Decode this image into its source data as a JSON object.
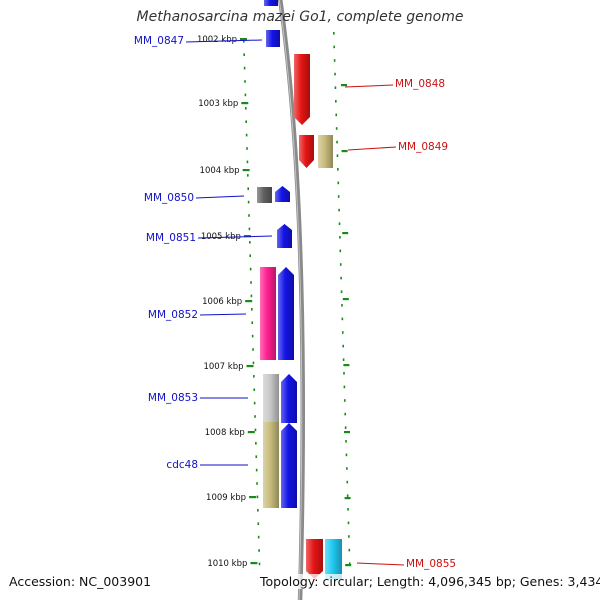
{
  "title": "Methanosarcina mazei Go1, complete genome",
  "footer": {
    "accession": "Accession: NC_003901",
    "info": "Topology: circular; Length: 4,096,345 bp; Genes: 3,434"
  },
  "colors": {
    "backbone": "#8a8a8a",
    "tick": "#1a8a1a",
    "left_label": "#1010c8",
    "right_label": "#cc1010"
  },
  "kbp_labels": [
    "1002 kbp",
    "1003 kbp",
    "1004 kbp",
    "1005 kbp",
    "1006 kbp",
    "1007 kbp",
    "1008 kbp",
    "1009 kbp",
    "1010 kbp"
  ],
  "gene_labels_left": [
    "MM_0847",
    "MM_0850",
    "MM_0851",
    "MM_0852",
    "MM_0853",
    "cdc48"
  ],
  "gene_labels_right": [
    "MM_0848",
    "MM_0849",
    "MM_0855"
  ],
  "features": [
    {
      "kind": "cds",
      "color": "#1414e6",
      "strand": "forward"
    },
    {
      "kind": "cds",
      "color": "#e61414",
      "strand": "reverse"
    },
    {
      "kind": "cds",
      "color": "#e61414",
      "strand": "reverse"
    },
    {
      "kind": "orf",
      "color": "#c8bc7c"
    },
    {
      "kind": "orf",
      "color": "#606060"
    },
    {
      "kind": "cds",
      "color": "#1414e6",
      "strand": "forward"
    },
    {
      "kind": "cds",
      "color": "#1414e6",
      "strand": "forward"
    },
    {
      "kind": "orf",
      "color": "#ff2090"
    },
    {
      "kind": "cds",
      "color": "#1414e6",
      "strand": "forward"
    },
    {
      "kind": "orf",
      "color": "#c8c8c8"
    },
    {
      "kind": "cds",
      "color": "#1414e6",
      "strand": "forward"
    },
    {
      "kind": "orf",
      "color": "#c8bc7c"
    },
    {
      "kind": "cds",
      "color": "#1414e6",
      "strand": "forward"
    },
    {
      "kind": "cds",
      "color": "#e61414",
      "strand": "reverse"
    },
    {
      "kind": "orf",
      "color": "#20c8f0"
    }
  ]
}
